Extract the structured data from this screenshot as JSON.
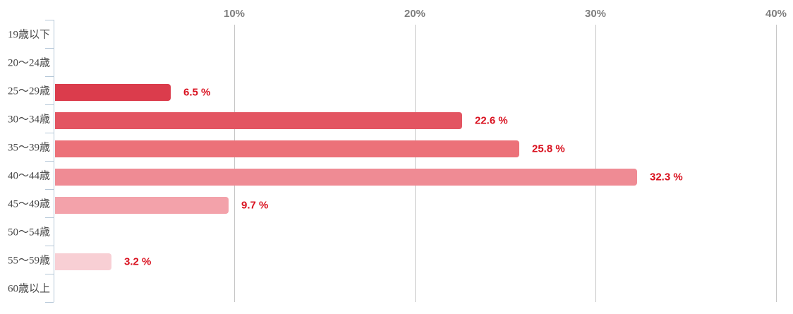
{
  "chart_data": {
    "type": "bar",
    "orientation": "horizontal",
    "title": "",
    "xlabel": "",
    "ylabel": "",
    "categories": [
      "19歳以下",
      "20〜24歳",
      "25〜29歳",
      "30〜34歳",
      "35〜39歳",
      "40〜44歳",
      "45〜49歳",
      "50〜54歳",
      "55〜59歳",
      "60歳以上"
    ],
    "values": [
      null,
      null,
      6.5,
      22.6,
      25.8,
      32.3,
      9.7,
      null,
      3.2,
      null
    ],
    "value_labels": [
      "",
      "",
      "6.5 %",
      "22.6 %",
      "25.8 %",
      "32.3 %",
      "9.7 %",
      "",
      "3.2 %",
      ""
    ],
    "bar_colors": [
      "",
      "",
      "#db3c4c",
      "#e35562",
      "#ec7179",
      "#ef8b94",
      "#f3a2aa",
      "",
      "#f8cfd4",
      ""
    ],
    "x_axis": {
      "position": "top",
      "min": 0,
      "max": 40,
      "ticks": [
        10,
        20,
        30,
        40
      ],
      "tick_labels": [
        "10%",
        "20%",
        "30%",
        "40%"
      ]
    },
    "grid": true,
    "legend": false,
    "colors": {
      "value_label": "#d9111f",
      "tick_label": "#7f7f7f",
      "category_label": "#444444",
      "gridline": "#c6c6c6",
      "axis_line": "#b6c8d8",
      "background": "#ffffff"
    }
  }
}
